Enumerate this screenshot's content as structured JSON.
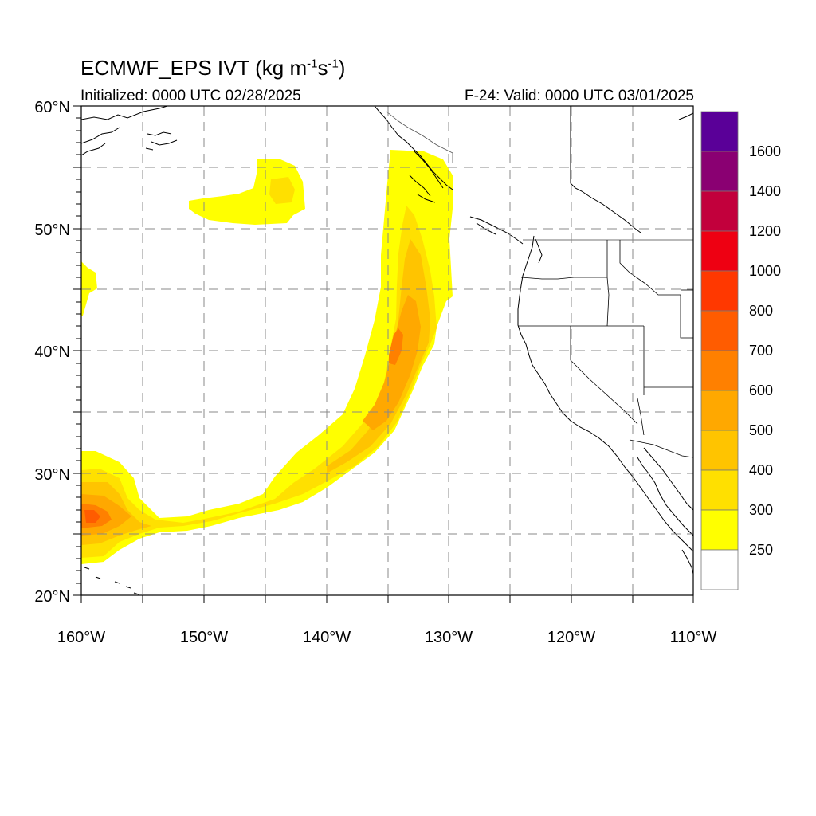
{
  "header": {
    "title_prefix": "ECMWF_EPS IVT (kg m",
    "title_sup1": "-1",
    "title_mid": "s",
    "title_sup2": "-1",
    "title_suffix": ")",
    "initialized": "Initialized: 0000 UTC 02/28/2025",
    "valid": "F-24: Valid: 0000 UTC 03/01/2025"
  },
  "map": {
    "lon_range": [
      -160,
      -110
    ],
    "lat_range": [
      20,
      60
    ],
    "lon_labels": [
      "160°W",
      "150°W",
      "140°W",
      "130°W",
      "120°W",
      "110°W"
    ],
    "lat_labels": [
      "60°N",
      "50°N",
      "40°N",
      "30°N",
      "20°N"
    ],
    "grid": "dashed every 5°"
  },
  "colorbar": {
    "labels": [
      "1600",
      "1400",
      "1200",
      "1000",
      "800",
      "700",
      "600",
      "500",
      "400",
      "300",
      "250"
    ],
    "colors": [
      "#5a0098",
      "#8a0072",
      "#c2003c",
      "#ee0012",
      "#ff3800",
      "#ff5c00",
      "#ff8000",
      "#ffa800",
      "#ffc400",
      "#ffe000",
      "#ffff00",
      "#ffffff"
    ]
  },
  "fields": {
    "colors": {
      "yellow": "#ffff00",
      "yellow2": "#ffe000",
      "yellow3": "#ffc400",
      "orange": "#ffa800",
      "orange2": "#ff8000",
      "orange3": "#ff5c00"
    }
  }
}
